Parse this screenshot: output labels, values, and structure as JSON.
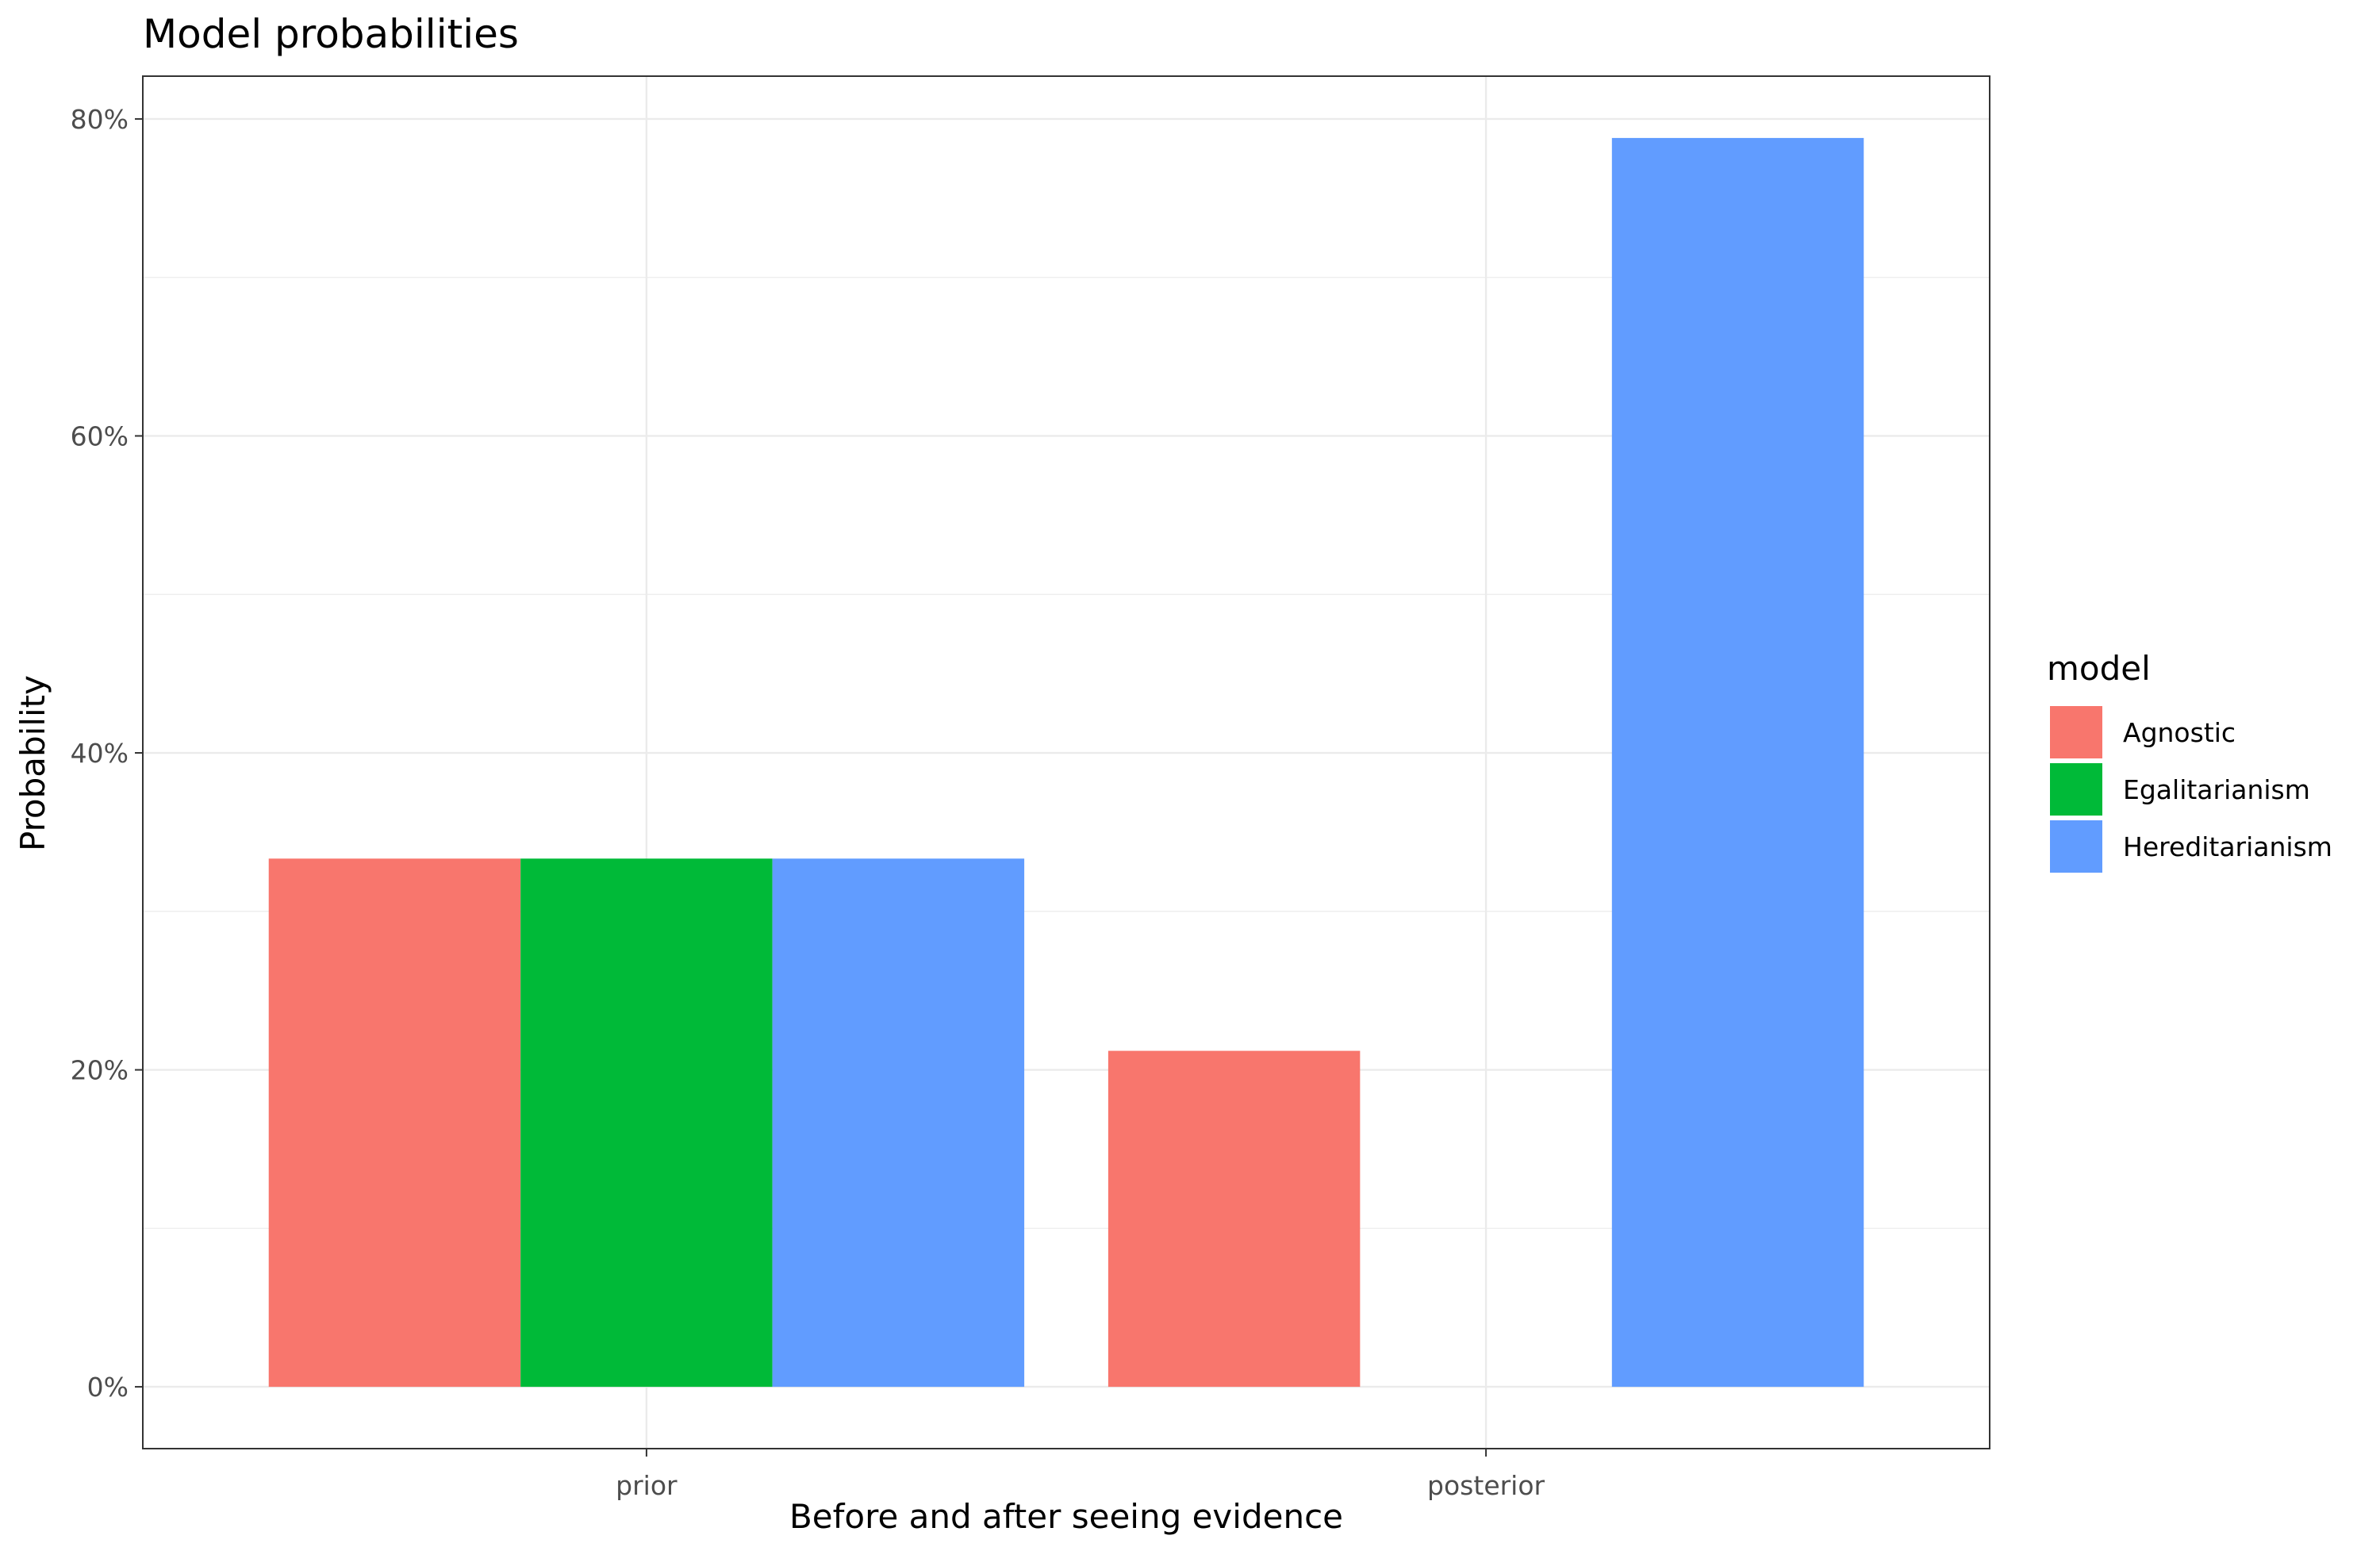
{
  "chart_data": {
    "type": "bar",
    "title": "Model probabilities",
    "xlabel": "Before and after seeing evidence",
    "ylabel": "Probability",
    "categories": [
      "prior",
      "posterior"
    ],
    "series": [
      {
        "name": "Agnostic",
        "color": "#F8766D",
        "values": [
          33.33,
          21.2
        ]
      },
      {
        "name": "Egalitarianism",
        "color": "#00BA38",
        "values": [
          33.33,
          0
        ]
      },
      {
        "name": "Hereditarianism",
        "color": "#619CFF",
        "values": [
          33.33,
          78.8
        ]
      }
    ],
    "ylim": [
      -3.9,
      82.7
    ],
    "yticks": [
      0,
      20,
      40,
      60,
      80
    ],
    "ytick_labels": [
      "0%",
      "20%",
      "40%",
      "60%",
      "80%"
    ],
    "grid": true,
    "legend": {
      "title": "model",
      "position": "right"
    }
  }
}
